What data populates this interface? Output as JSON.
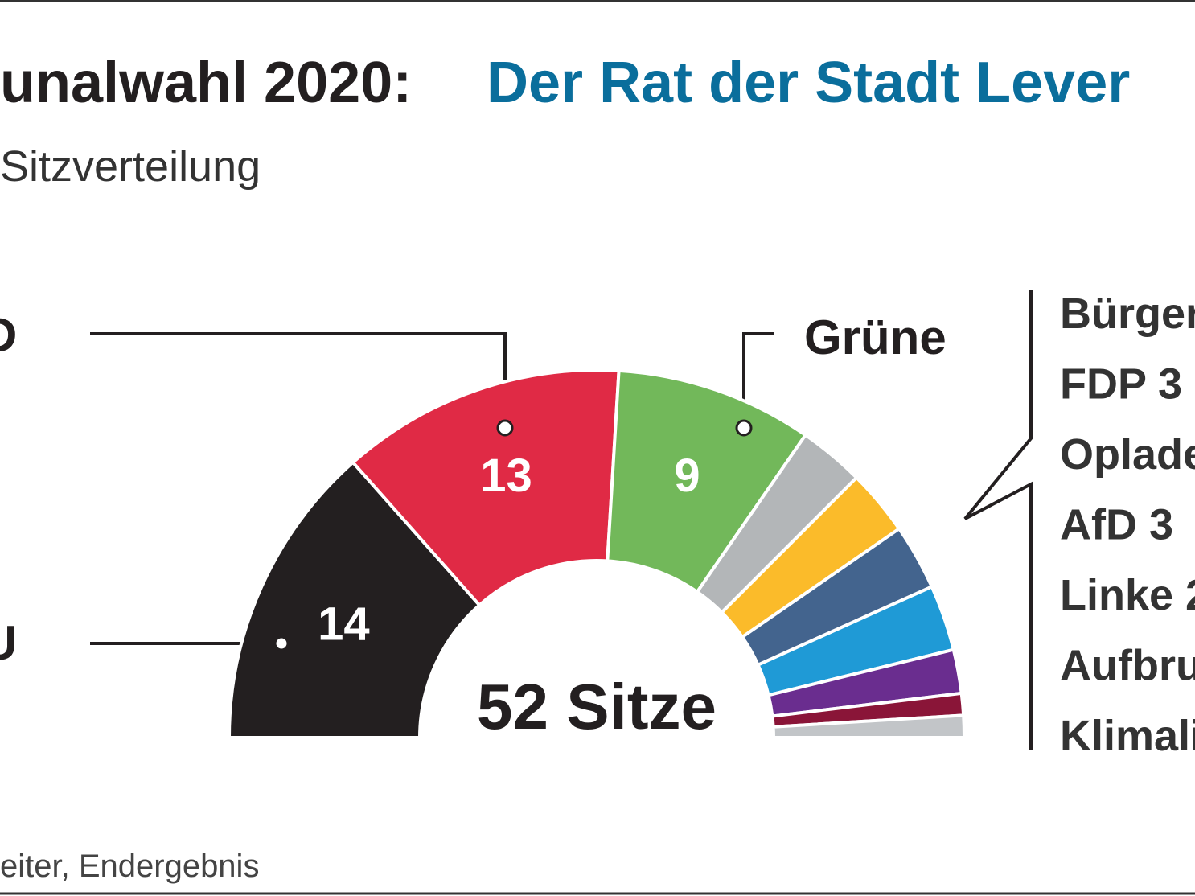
{
  "chart_data": {
    "type": "pie",
    "title": "unalwahl 2020:",
    "title_highlight": "Der Rat der Stadt Lever",
    "subtitle": "Sitzverteilung",
    "source": "eiter, Endergebnis",
    "total_label": "52 Sitze",
    "labels": [
      "U",
      "D",
      "Grüne",
      "Bürger",
      "FDP 3",
      "Oplade",
      "AfD 3",
      "Linke 2",
      "Aufbru",
      "Klimali"
    ],
    "values": [
      14,
      13,
      9,
      3,
      3,
      3,
      3,
      2,
      1,
      1
    ],
    "colors": [
      "#231f20",
      "#e02a45",
      "#72b85a",
      "#b3b6b8",
      "#fbbb2a",
      "#43648e",
      "#1f9ad6",
      "#6a2d8f",
      "#8a1538",
      "#c2c5c8"
    ]
  }
}
